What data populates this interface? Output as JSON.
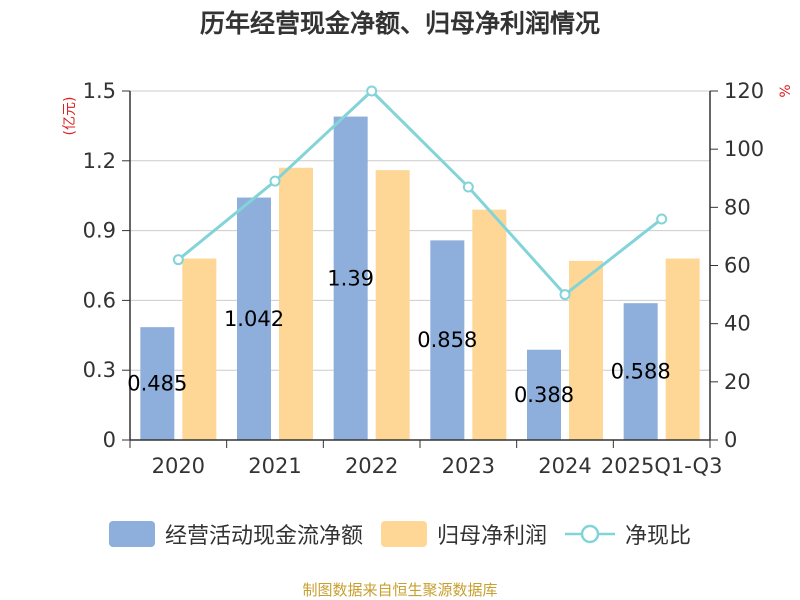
{
  "title": "历年经营现金净额、归母净利润情况",
  "source": "制图数据来自恒生聚源数据库",
  "colors": {
    "cash": "#8eaedb",
    "profit": "#fed797",
    "ratio": "#82d4d8",
    "axisUnit": "#dd2222"
  },
  "chart_data": {
    "type": "bar",
    "categories": [
      "2020",
      "2021",
      "2022",
      "2023",
      "2024",
      "2025Q1-Q3"
    ],
    "left_axis": {
      "unit": "(亿元)",
      "ylim": [
        0,
        1.5
      ],
      "ticks": [
        "0",
        "0.3",
        "0.6",
        "0.9",
        "1.2",
        "1.5"
      ]
    },
    "right_axis": {
      "unit": "%",
      "ylim": [
        0,
        120
      ],
      "ticks": [
        "0",
        "20",
        "40",
        "60",
        "80",
        "100",
        "120"
      ]
    },
    "series": [
      {
        "name": "经营活动现金流净额",
        "type": "bar",
        "axis": "left",
        "values": [
          0.485,
          1.042,
          1.39,
          0.858,
          0.388,
          0.588
        ],
        "labels": [
          "0.485",
          "1.042",
          "1.39",
          "0.858",
          "0.388",
          "0.588"
        ]
      },
      {
        "name": "归母净利润",
        "type": "bar",
        "axis": "left",
        "values": [
          0.78,
          1.17,
          1.16,
          0.99,
          0.77,
          0.78
        ]
      },
      {
        "name": "净现比",
        "type": "line",
        "axis": "right",
        "values": [
          62,
          89,
          120,
          87,
          50,
          76
        ]
      }
    ]
  }
}
